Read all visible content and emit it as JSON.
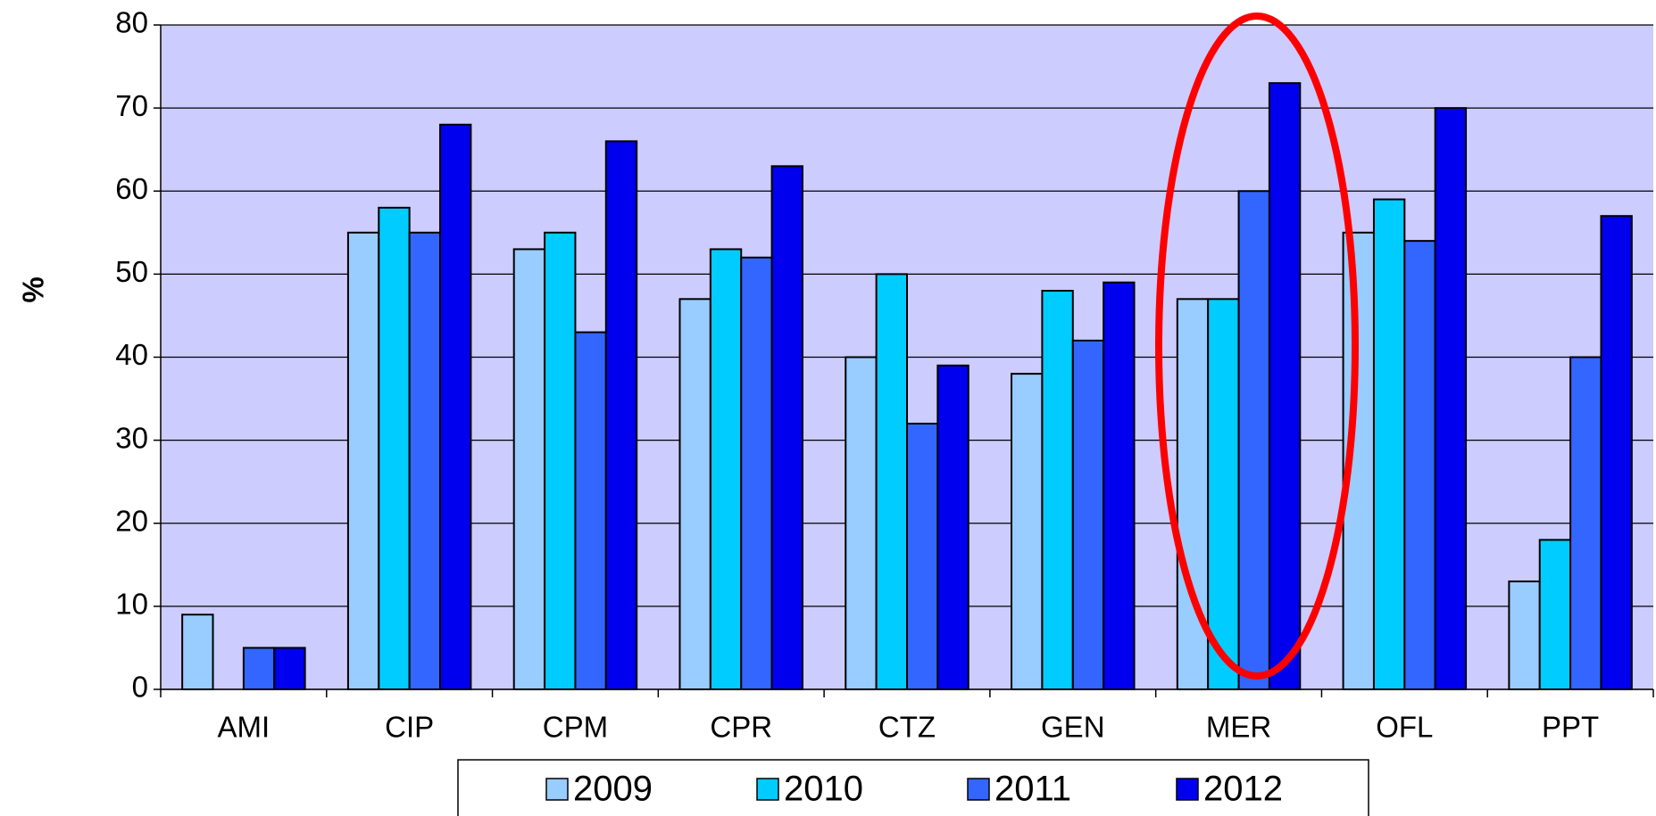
{
  "chart_data": {
    "type": "bar",
    "y_label": "%",
    "categories": [
      "AMI",
      "CIP",
      "CPM",
      "CPR",
      "CTZ",
      "GEN",
      "MER",
      "OFL",
      "PPT"
    ],
    "series": [
      {
        "name": "2009",
        "color": "#99ccff",
        "values": [
          9,
          55,
          53,
          47,
          40,
          38,
          47,
          55,
          13
        ]
      },
      {
        "name": "2010",
        "color": "#00ccff",
        "values": [
          null,
          58,
          55,
          53,
          50,
          48,
          47,
          59,
          18
        ]
      },
      {
        "name": "2011",
        "color": "#3366ff",
        "values": [
          5,
          55,
          43,
          52,
          32,
          42,
          60,
          54,
          40
        ]
      },
      {
        "name": "2012",
        "color": "#0000ee",
        "values": [
          5,
          68,
          66,
          63,
          39,
          49,
          73,
          70,
          57
        ]
      }
    ],
    "ylim": [
      0,
      80
    ],
    "yticks": [
      0,
      10,
      20,
      30,
      40,
      50,
      60,
      70,
      80
    ],
    "grid": true,
    "background": "#ccccff",
    "legend": "bottom"
  }
}
